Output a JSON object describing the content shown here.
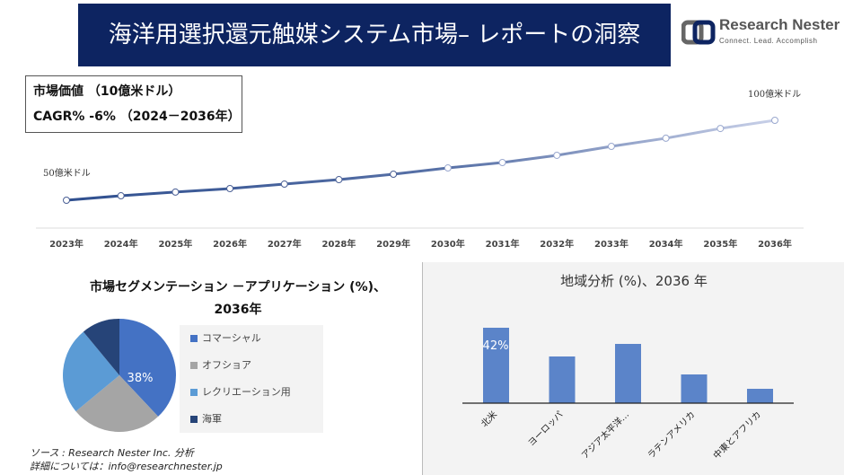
{
  "header": {
    "title": "海洋用選択還元触媒システム市場– レポートの洞察",
    "logo_name": "Research Nester",
    "logo_tagline": "Connect. Lead. Accomplish"
  },
  "info": {
    "market_value": "市場価値 （10億米ドル）",
    "cagr": "CAGR% -6% （2024－2036年）"
  },
  "chart_data": [
    {
      "type": "line",
      "categories": [
        "2023年",
        "2024年",
        "2025年",
        "2026年",
        "2027年",
        "2028年",
        "2029年",
        "2030年",
        "2031年",
        "2032年",
        "2033年",
        "2034年",
        "2035年",
        "2036年"
      ],
      "values": [
        50,
        52.8,
        55.1,
        57.3,
        60.1,
        62.9,
        66.3,
        70.2,
        73.6,
        78.1,
        83.7,
        88.8,
        94.9,
        100
      ],
      "annotations": {
        "start": "50億米ドル",
        "end": "100億米ドル"
      },
      "colors": [
        "#2f4f8f",
        "#c8d0e8"
      ]
    },
    {
      "type": "pie",
      "title": "市場セグメンテーション －アプリケーション (%)、2036年",
      "labels": [
        "コマーシャル",
        "オフショア",
        "レクリエーション用",
        "海軍"
      ],
      "values": [
        38,
        26,
        25,
        11
      ],
      "colors": [
        "#4472c4",
        "#a5a5a5",
        "#5b9bd5",
        "#264478"
      ],
      "data_label": "38%"
    },
    {
      "type": "bar",
      "title": "地域分析 (%)、2036 年",
      "categories": [
        "北米",
        "ヨーロッパ",
        "アジア太平洋…",
        "ラテンアメリカ",
        "中東とアフリカ"
      ],
      "values": [
        42,
        26,
        33,
        16,
        8
      ],
      "data_label": "42%",
      "color": "#5b84c9"
    }
  ],
  "footer": {
    "source": "ソース : Research Nester Inc. 分析",
    "contact": "詳細については：info@researchnester.jp"
  }
}
